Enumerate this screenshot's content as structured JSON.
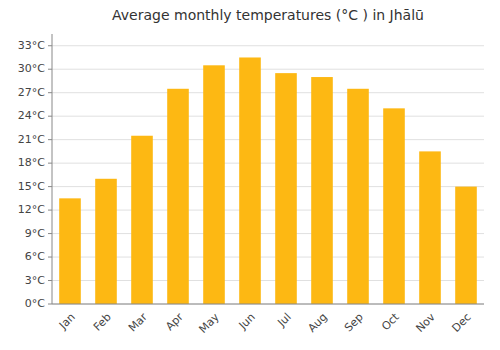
{
  "chart_data": {
    "type": "bar",
    "title": "Average monthly temperatures (°C ) in Jhālū",
    "categories": [
      "Jan",
      "Feb",
      "Mar",
      "Apr",
      "May",
      "Jun",
      "Jul",
      "Aug",
      "Sep",
      "Oct",
      "Nov",
      "Dec"
    ],
    "values": [
      13.5,
      16.0,
      21.5,
      27.5,
      30.5,
      31.5,
      29.5,
      29.0,
      27.5,
      25.0,
      19.5,
      15.0
    ],
    "color": "#FDB813",
    "ylim": [
      0,
      34.5
    ],
    "yticks": [
      {
        "value": 0,
        "label": "0°C"
      },
      {
        "value": 3,
        "label": "3°C"
      },
      {
        "value": 6,
        "label": "6°C"
      },
      {
        "value": 9,
        "label": "9°C"
      },
      {
        "value": 12,
        "label": "12°C"
      },
      {
        "value": 15,
        "label": "15°C"
      },
      {
        "value": 18,
        "label": "18°C"
      },
      {
        "value": 21,
        "label": "21°C"
      },
      {
        "value": 24,
        "label": "24°C"
      },
      {
        "value": 27,
        "label": "27°C"
      },
      {
        "value": 30,
        "label": "30°C"
      },
      {
        "value": 33,
        "label": "33°C"
      }
    ],
    "grid": true
  }
}
